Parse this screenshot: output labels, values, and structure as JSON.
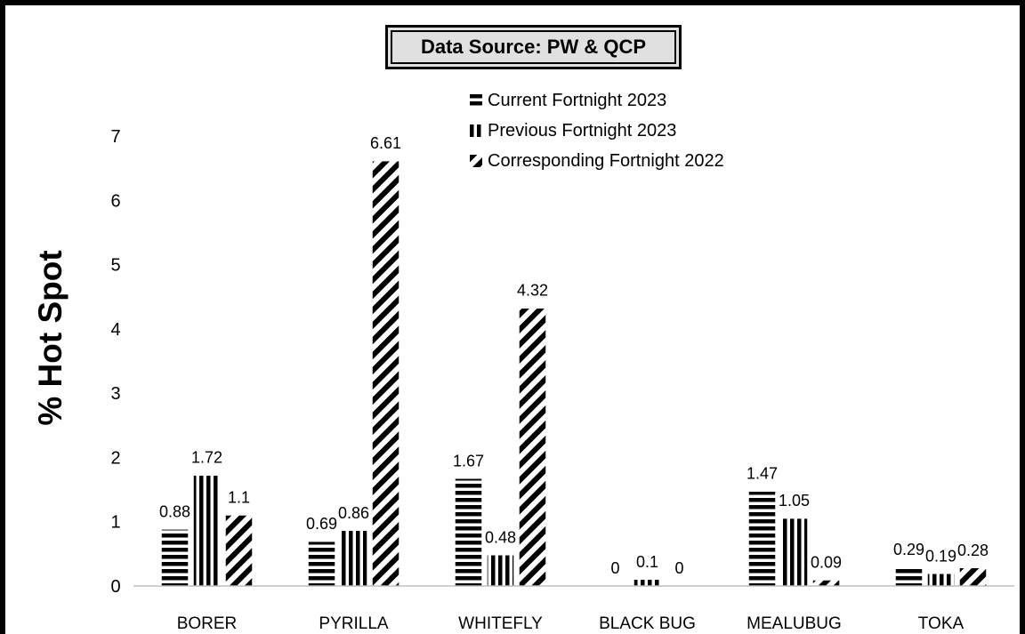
{
  "source_label": "Data Source: PW & QCP",
  "chart_data": {
    "type": "bar",
    "categories": [
      "BORER",
      "PYRILLA",
      "WHITEFLY",
      "BLACK BUG",
      "MEALUBUG",
      "TOKA"
    ],
    "series": [
      {
        "name": "Current Fortnight 2023",
        "pattern": "horizontal",
        "values": [
          0.88,
          0.69,
          1.67,
          0,
          1.47,
          0.29
        ],
        "labels": [
          "0.88",
          "0.69",
          "1.67",
          "0",
          "1.47",
          "0.29"
        ]
      },
      {
        "name": "Previous Fortnight 2023",
        "pattern": "vertical",
        "values": [
          1.72,
          0.86,
          0.48,
          0.1,
          1.05,
          0.19
        ],
        "labels": [
          "1.72",
          "0.86",
          "0.48",
          "0.1",
          "1.05",
          "0.19"
        ]
      },
      {
        "name": "Corresponding Fortnight 2022",
        "pattern": "diagonal",
        "values": [
          1.1,
          6.61,
          4.32,
          0,
          0.09,
          0.28
        ],
        "labels": [
          "1.1",
          "6.61",
          "4.32",
          "0",
          "0.09",
          "0.28"
        ]
      }
    ],
    "ylabel": "% Hot Spot",
    "xlabel": "",
    "ylim": [
      0,
      7
    ],
    "yticks": [
      "0",
      "1",
      "2",
      "3",
      "4",
      "5",
      "6",
      "7"
    ],
    "grid": false,
    "legend_position": "top-center",
    "colors": {
      "bar": "#000000",
      "background": "#ffffff",
      "source_box": "#e0e0e0"
    }
  }
}
